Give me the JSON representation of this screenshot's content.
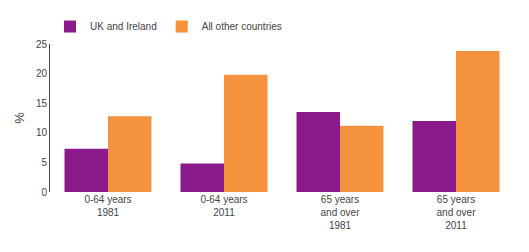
{
  "chart_data": {
    "type": "bar",
    "ylabel": "%",
    "categories": [
      "0-64 years\n1981",
      "0-64 years\n2011",
      "65 years\nand over\n1981",
      "65 years\nand over\n2011"
    ],
    "series": [
      {
        "name": "UK and Ireland",
        "color": "#8B1A8B",
        "values": [
          7.3,
          4.8,
          13.5,
          12.0
        ]
      },
      {
        "name": "All other countries",
        "color": "#F5923E",
        "values": [
          12.8,
          19.8,
          11.2,
          23.8
        ]
      }
    ],
    "ylim": [
      0,
      25
    ],
    "yticks": [
      0,
      5,
      10,
      15,
      20,
      25
    ],
    "grid": false,
    "legend": "upper left"
  }
}
